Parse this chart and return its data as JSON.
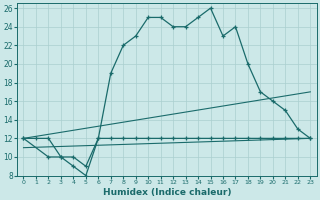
{
  "xlabel": "Humidex (Indice chaleur)",
  "bg_color": "#cce8e8",
  "grid_color": "#aacfcf",
  "line_color": "#1a6b6b",
  "xlim": [
    -0.5,
    23.5
  ],
  "ylim": [
    8,
    26.5
  ],
  "xticks": [
    0,
    1,
    2,
    3,
    4,
    5,
    6,
    7,
    8,
    9,
    10,
    11,
    12,
    13,
    14,
    15,
    16,
    17,
    18,
    19,
    20,
    21,
    22,
    23
  ],
  "yticks": [
    8,
    10,
    12,
    14,
    16,
    18,
    20,
    22,
    24,
    26
  ],
  "line1_x": [
    0,
    1,
    2,
    3,
    4,
    5,
    6,
    7,
    8,
    9,
    10,
    11,
    12,
    13,
    14,
    15,
    16,
    17,
    18,
    19,
    20,
    21,
    22,
    23
  ],
  "line1_y": [
    12,
    12,
    12,
    10,
    10,
    9,
    12,
    19,
    22,
    23,
    25,
    25,
    24,
    24,
    25,
    26,
    23,
    24,
    20,
    17,
    16,
    15,
    13,
    12
  ],
  "line2_x": [
    0,
    2,
    3,
    4,
    5,
    6,
    7,
    8,
    9,
    10,
    11,
    12,
    13,
    14,
    15,
    16,
    17,
    18,
    19,
    20,
    21,
    22,
    23
  ],
  "line2_y": [
    12,
    10,
    10,
    9,
    8,
    12,
    12,
    12,
    12,
    12,
    12,
    12,
    12,
    12,
    12,
    12,
    12,
    12,
    12,
    12,
    12,
    12,
    12
  ],
  "line3_x": [
    0,
    23
  ],
  "line3_y": [
    12,
    17
  ],
  "line4_x": [
    0,
    23
  ],
  "line4_y": [
    11,
    12
  ]
}
